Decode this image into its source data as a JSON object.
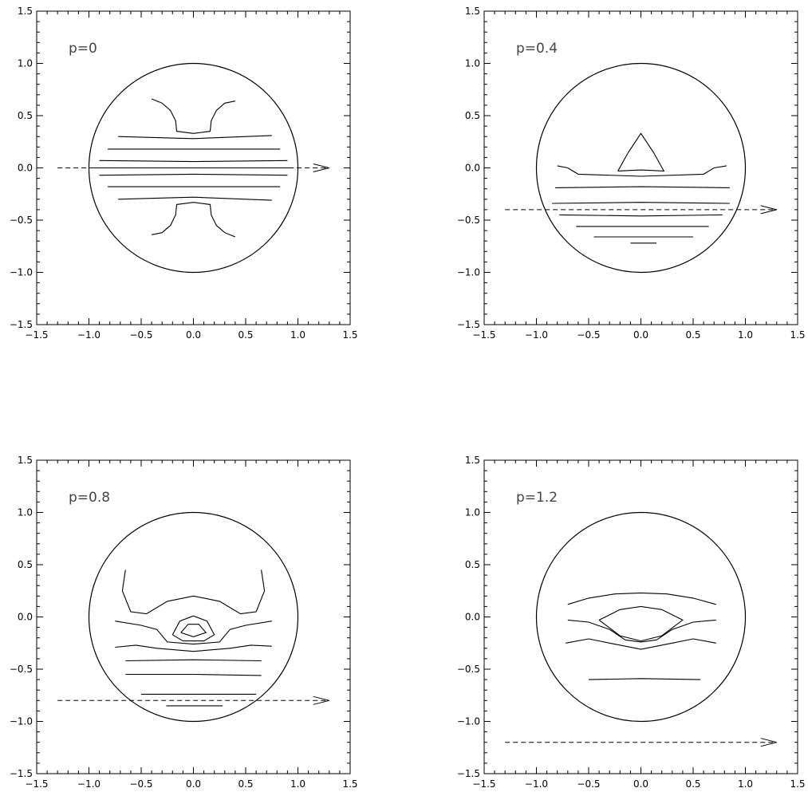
{
  "chart_data": [
    {
      "type": "contour",
      "label": "p=0",
      "p": 0,
      "xlim": [
        -1.5,
        1.5
      ],
      "ylim": [
        -1.5,
        1.5
      ],
      "xticks": [
        "−1.5",
        "−1.0",
        "−0.5",
        "0.0",
        "0.5",
        "1.0",
        "1.5"
      ],
      "yticks": [
        "−1.5",
        "−1.0",
        "−0.5",
        "0.0",
        "0.5",
        "1.0",
        "1.5"
      ],
      "circle": {
        "cx": 0,
        "cy": 0,
        "r": 1
      },
      "path_line": {
        "y": 0,
        "x_from": -1.3,
        "x_to": 1.3
      },
      "contours": [
        [
          [
            -0.4,
            0.66
          ],
          [
            -0.3,
            0.62
          ],
          [
            -0.22,
            0.55
          ],
          [
            -0.17,
            0.45
          ],
          [
            -0.16,
            0.35
          ],
          [
            0.0,
            0.33
          ],
          [
            0.16,
            0.35
          ],
          [
            0.17,
            0.45
          ],
          [
            0.22,
            0.55
          ],
          [
            0.3,
            0.62
          ],
          [
            0.4,
            0.64
          ]
        ],
        [
          [
            -0.72,
            0.3
          ],
          [
            0.0,
            0.28
          ],
          [
            0.75,
            0.31
          ]
        ],
        [
          [
            -0.82,
            0.18
          ],
          [
            0.0,
            0.18
          ],
          [
            0.83,
            0.18
          ]
        ],
        [
          [
            -0.9,
            0.07
          ],
          [
            0.0,
            0.06
          ],
          [
            0.9,
            0.07
          ]
        ],
        [
          [
            -0.95,
            0.0
          ],
          [
            0.0,
            0.0
          ],
          [
            0.95,
            0.0
          ]
        ],
        [
          [
            -0.9,
            -0.07
          ],
          [
            0.0,
            -0.06
          ],
          [
            0.9,
            -0.07
          ]
        ],
        [
          [
            -0.82,
            -0.18
          ],
          [
            0.0,
            -0.18
          ],
          [
            0.83,
            -0.18
          ]
        ],
        [
          [
            -0.72,
            -0.3
          ],
          [
            0.0,
            -0.28
          ],
          [
            0.75,
            -0.31
          ]
        ],
        [
          [
            -0.4,
            -0.64
          ],
          [
            -0.3,
            -0.62
          ],
          [
            -0.22,
            -0.55
          ],
          [
            -0.17,
            -0.45
          ],
          [
            -0.16,
            -0.35
          ],
          [
            0.0,
            -0.33
          ],
          [
            0.16,
            -0.35
          ],
          [
            0.17,
            -0.45
          ],
          [
            0.22,
            -0.55
          ],
          [
            0.3,
            -0.62
          ],
          [
            0.4,
            -0.66
          ]
        ]
      ]
    },
    {
      "type": "contour",
      "label": "p=0.4",
      "p": 0.4,
      "xlim": [
        -1.5,
        1.5
      ],
      "ylim": [
        -1.5,
        1.5
      ],
      "xticks": [
        "−1.5",
        "−1.0",
        "−0.5",
        "0.0",
        "0.5",
        "1.0",
        "1.5"
      ],
      "yticks": [
        "−1.5",
        "−1.0",
        "−0.5",
        "0.0",
        "0.5",
        "1.0",
        "1.5"
      ],
      "circle": {
        "cx": 0,
        "cy": 0,
        "r": 1
      },
      "path_line": {
        "y": -0.4,
        "x_from": -1.3,
        "x_to": 1.3
      },
      "contours": [
        [
          [
            -0.22,
            -0.03
          ],
          [
            -0.12,
            0.15
          ],
          [
            0.0,
            0.33
          ],
          [
            0.12,
            0.15
          ],
          [
            0.22,
            -0.03
          ],
          [
            0.0,
            -0.02
          ],
          [
            -0.22,
            -0.03
          ]
        ],
        [
          [
            -0.8,
            0.02
          ],
          [
            -0.7,
            0.0
          ],
          [
            -0.6,
            -0.06
          ],
          [
            0.0,
            -0.08
          ],
          [
            0.6,
            -0.06
          ],
          [
            0.7,
            0.0
          ],
          [
            0.82,
            0.02
          ]
        ],
        [
          [
            -0.82,
            -0.19
          ],
          [
            0.0,
            -0.18
          ],
          [
            0.85,
            -0.19
          ]
        ],
        [
          [
            -0.85,
            -0.34
          ],
          [
            0.0,
            -0.33
          ],
          [
            0.85,
            -0.34
          ]
        ],
        [
          [
            -0.78,
            -0.45
          ],
          [
            0.0,
            -0.46
          ],
          [
            0.78,
            -0.45
          ]
        ],
        [
          [
            -0.62,
            -0.56
          ],
          [
            0.0,
            -0.56
          ],
          [
            0.65,
            -0.56
          ]
        ],
        [
          [
            -0.45,
            -0.66
          ],
          [
            0.0,
            -0.66
          ],
          [
            0.5,
            -0.66
          ]
        ],
        [
          [
            -0.1,
            -0.72
          ],
          [
            0.15,
            -0.72
          ]
        ]
      ]
    },
    {
      "type": "contour",
      "label": "p=0.8",
      "p": 0.8,
      "xlim": [
        -1.5,
        1.5
      ],
      "ylim": [
        -1.5,
        1.5
      ],
      "xticks": [
        "−1.5",
        "−1.0",
        "−0.5",
        "0.0",
        "0.5",
        "1.0",
        "1.5"
      ],
      "yticks": [
        "−1.5",
        "−1.0",
        "−0.5",
        "0.0",
        "0.5",
        "1.0",
        "1.5"
      ],
      "circle": {
        "cx": 0,
        "cy": 0,
        "r": 1
      },
      "path_line": {
        "y": -0.8,
        "x_from": -1.3,
        "x_to": 1.3
      },
      "contours": [
        [
          [
            -0.65,
            0.45
          ],
          [
            -0.68,
            0.25
          ],
          [
            -0.6,
            0.05
          ],
          [
            -0.45,
            0.03
          ],
          [
            -0.25,
            0.15
          ],
          [
            0.0,
            0.2
          ],
          [
            0.25,
            0.15
          ],
          [
            0.45,
            0.03
          ],
          [
            0.6,
            0.05
          ],
          [
            0.68,
            0.25
          ],
          [
            0.65,
            0.45
          ]
        ],
        [
          [
            -0.2,
            -0.17
          ],
          [
            -0.13,
            -0.04
          ],
          [
            0.0,
            0.01
          ],
          [
            0.13,
            -0.04
          ],
          [
            0.2,
            -0.17
          ],
          [
            0.1,
            -0.23
          ],
          [
            -0.1,
            -0.23
          ],
          [
            -0.2,
            -0.17
          ]
        ],
        [
          [
            -0.12,
            -0.15
          ],
          [
            -0.05,
            -0.07
          ],
          [
            0.05,
            -0.07
          ],
          [
            0.12,
            -0.15
          ],
          [
            0.0,
            -0.19
          ],
          [
            -0.12,
            -0.15
          ]
        ],
        [
          [
            -0.75,
            -0.04
          ],
          [
            -0.5,
            -0.08
          ],
          [
            -0.35,
            -0.12
          ],
          [
            -0.25,
            -0.24
          ],
          [
            0.0,
            -0.26
          ],
          [
            0.25,
            -0.24
          ],
          [
            0.35,
            -0.12
          ],
          [
            0.5,
            -0.08
          ],
          [
            0.75,
            -0.04
          ]
        ],
        [
          [
            -0.75,
            -0.29
          ],
          [
            -0.55,
            -0.27
          ],
          [
            -0.35,
            -0.3
          ],
          [
            0.0,
            -0.33
          ],
          [
            0.35,
            -0.3
          ],
          [
            0.55,
            -0.27
          ],
          [
            0.75,
            -0.28
          ]
        ],
        [
          [
            -0.65,
            -0.42
          ],
          [
            0.0,
            -0.41
          ],
          [
            0.65,
            -0.42
          ]
        ],
        [
          [
            -0.65,
            -0.55
          ],
          [
            0.0,
            -0.55
          ],
          [
            0.65,
            -0.56
          ]
        ],
        [
          [
            -0.5,
            -0.74
          ],
          [
            0.0,
            -0.74
          ],
          [
            0.6,
            -0.74
          ]
        ],
        [
          [
            -0.26,
            -0.85
          ],
          [
            0.28,
            -0.85
          ]
        ]
      ]
    },
    {
      "type": "contour",
      "label": "p=1.2",
      "p": 1.2,
      "xlim": [
        -1.5,
        1.5
      ],
      "ylim": [
        -1.5,
        1.5
      ],
      "xticks": [
        "−1.5",
        "−1.0",
        "−0.5",
        "0.0",
        "0.5",
        "1.0",
        "1.5"
      ],
      "yticks": [
        "−1.5",
        "−1.0",
        "−0.5",
        "0.0",
        "0.5",
        "1.0",
        "1.5"
      ],
      "circle": {
        "cx": 0,
        "cy": 0,
        "r": 1
      },
      "path_line": {
        "y": -1.2,
        "x_from": -1.3,
        "x_to": 1.3
      },
      "contours": [
        [
          [
            -0.7,
            0.12
          ],
          [
            -0.5,
            0.18
          ],
          [
            -0.25,
            0.22
          ],
          [
            0.0,
            0.23
          ],
          [
            0.25,
            0.22
          ],
          [
            0.5,
            0.18
          ],
          [
            0.72,
            0.12
          ]
        ],
        [
          [
            -0.4,
            -0.03
          ],
          [
            -0.2,
            0.07
          ],
          [
            0.0,
            0.1
          ],
          [
            0.2,
            0.07
          ],
          [
            0.4,
            -0.03
          ],
          [
            0.2,
            -0.18
          ],
          [
            0.0,
            -0.23
          ],
          [
            -0.2,
            -0.18
          ],
          [
            -0.4,
            -0.03
          ]
        ],
        [
          [
            -0.7,
            -0.03
          ],
          [
            -0.5,
            -0.05
          ],
          [
            -0.3,
            -0.12
          ],
          [
            -0.15,
            -0.22
          ],
          [
            0.0,
            -0.24
          ],
          [
            0.15,
            -0.22
          ],
          [
            0.3,
            -0.12
          ],
          [
            0.5,
            -0.05
          ],
          [
            0.72,
            -0.03
          ]
        ],
        [
          [
            -0.72,
            -0.25
          ],
          [
            -0.5,
            -0.21
          ],
          [
            -0.3,
            -0.25
          ],
          [
            0.0,
            -0.31
          ],
          [
            0.3,
            -0.25
          ],
          [
            0.5,
            -0.21
          ],
          [
            0.72,
            -0.25
          ]
        ],
        [
          [
            -0.5,
            -0.6
          ],
          [
            0.0,
            -0.59
          ],
          [
            0.57,
            -0.6
          ]
        ]
      ]
    }
  ]
}
